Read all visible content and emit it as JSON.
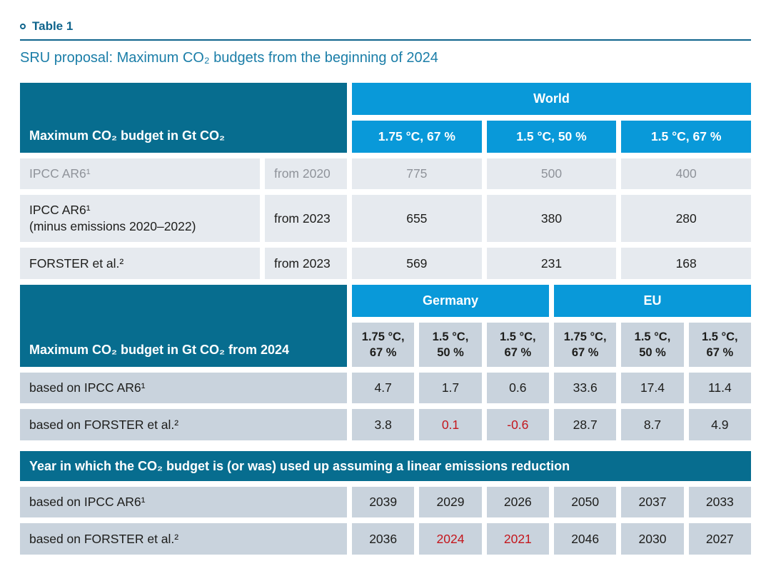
{
  "header": {
    "eyebrow": "Table 1",
    "title": "SRU proposal: Maximum CO₂ budgets from the beginning of 2024"
  },
  "colors": {
    "dark_teal": "#076d8f",
    "bright_blue": "#0999d9",
    "light_row": "#e6eaef",
    "mid_cell": "#c9d3dd",
    "muted_text": "#8f939a",
    "alert_red": "#c4161c",
    "heading_teal": "#0f648c",
    "subtitle_teal": "#1b7ea8"
  },
  "world": {
    "corner_label": "Maximum CO₂ budget in Gt CO₂",
    "group_header": "World",
    "col_headers": [
      "1.75 °C, 67 %",
      "1.5 °C, 50 %",
      "1.5 °C, 67 %"
    ],
    "rows": [
      {
        "muted": true,
        "source": "IPCC AR6¹",
        "note": "",
        "period": "from 2020",
        "values": [
          "775",
          "500",
          "400"
        ]
      },
      {
        "muted": false,
        "source": "IPCC AR6¹",
        "note": "(minus emissions 2020–2022)",
        "period": "from 2023",
        "values": [
          "655",
          "380",
          "280"
        ]
      },
      {
        "muted": false,
        "source": "FORSTER et al.²",
        "note": "",
        "period": "from 2023",
        "values": [
          "569",
          "231",
          "168"
        ]
      }
    ]
  },
  "regions": {
    "corner_label": "Maximum CO₂ budget in Gt CO₂ from 2024",
    "group_headers": [
      "Germany",
      "EU"
    ],
    "col_headers": [
      {
        "line1": "1.75 °C,",
        "line2": "67 %"
      },
      {
        "line1": "1.5 °C,",
        "line2": "50 %"
      },
      {
        "line1": "1.5 °C,",
        "line2": "67 %"
      },
      {
        "line1": "1.75 °C,",
        "line2": "67 %"
      },
      {
        "line1": "1.5 °C,",
        "line2": "50 %"
      },
      {
        "line1": "1.5 °C,",
        "line2": "67 %"
      }
    ],
    "rows": [
      {
        "source": "based on IPCC AR6¹",
        "cells": [
          {
            "text": "4.7"
          },
          {
            "text": "1.7"
          },
          {
            "text": "0.6"
          },
          {
            "text": "33.6"
          },
          {
            "text": "17.4"
          },
          {
            "text": "11.4"
          }
        ]
      },
      {
        "source": "based on FORSTER et al.²",
        "cells": [
          {
            "text": "3.8"
          },
          {
            "text": "0.1",
            "red": true
          },
          {
            "text": "-0.6",
            "red": true
          },
          {
            "text": "28.7"
          },
          {
            "text": "8.7"
          },
          {
            "text": "4.9"
          }
        ]
      }
    ]
  },
  "years": {
    "banner": "Year in which the CO₂ budget is (or was) used up assuming a linear emissions reduction",
    "rows": [
      {
        "source": "based on IPCC AR6¹",
        "cells": [
          {
            "text": "2039"
          },
          {
            "text": "2029"
          },
          {
            "text": "2026"
          },
          {
            "text": "2050"
          },
          {
            "text": "2037"
          },
          {
            "text": "2033"
          }
        ]
      },
      {
        "source": "based on FORSTER et al.²",
        "cells": [
          {
            "text": "2036"
          },
          {
            "text": "2024",
            "red": true
          },
          {
            "text": "2021",
            "red": true
          },
          {
            "text": "2046"
          },
          {
            "text": "2030"
          },
          {
            "text": "2027"
          }
        ]
      }
    ]
  }
}
